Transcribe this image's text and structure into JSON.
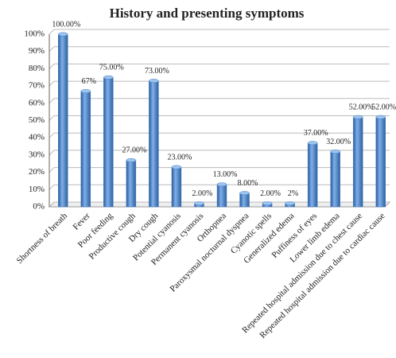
{
  "chart_data": {
    "type": "bar",
    "title": "History and presenting symptoms",
    "categories": [
      "Shortness of breath",
      "Fever",
      "Poor feeding",
      "Productive cough",
      "Dry cough",
      "Potential cyanosis",
      "Permanent cyanosis",
      "Orthopnea",
      "Paroxysmal nocturnal dyspnea",
      "Cyanotic spells",
      "Generalized edema",
      "Puffiness of eyes",
      "Lower limb edema",
      "Repeated hospital admission due to chest cause",
      "Repeated hospital admission due to cardiac cause"
    ],
    "values": [
      100,
      67,
      75,
      27,
      73,
      23,
      2,
      13,
      8,
      2,
      2,
      37,
      32,
      52,
      52
    ],
    "value_labels": [
      "100.00%",
      "67%",
      "75.00%",
      "27.00%",
      "73.00%",
      "23.00%",
      "2.00%",
      "13.00%",
      "8.00%",
      "2.00%",
      "2%",
      "37.00%",
      "32.00%",
      "52.00%",
      "52.00%"
    ],
    "color": "#4a7fc1",
    "ylim": [
      0,
      100
    ],
    "yticks": [
      {
        "value": 0,
        "label": "0%"
      },
      {
        "value": 10,
        "label": "10%"
      },
      {
        "value": 20,
        "label": "20%"
      },
      {
        "value": 30,
        "label": "30%"
      },
      {
        "value": 40,
        "label": "40%"
      },
      {
        "value": 50,
        "label": "50%"
      },
      {
        "value": 60,
        "label": "60%"
      },
      {
        "value": 70,
        "label": "70%"
      },
      {
        "value": 80,
        "label": "80%"
      },
      {
        "value": 90,
        "label": "90%"
      },
      {
        "value": 100,
        "label": "100%"
      }
    ],
    "grid": true
  }
}
